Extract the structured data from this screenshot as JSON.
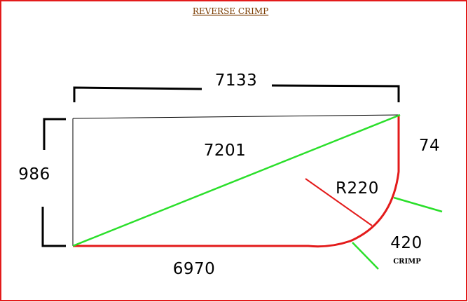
{
  "title": "REVERSE  CRIMP",
  "colors": {
    "frame": "#e31b1b",
    "title": "#7a3b00",
    "ink": "#000000",
    "red_line": "#e31b1b",
    "green_line": "#2adf2a"
  },
  "labels": {
    "top_width": "7133",
    "left_height": "986",
    "diagonal": "7201",
    "right_edge": "74",
    "radius": "R220",
    "bottom_length": "6970",
    "crimp_length": "420",
    "crimp": "CRIMP"
  }
}
